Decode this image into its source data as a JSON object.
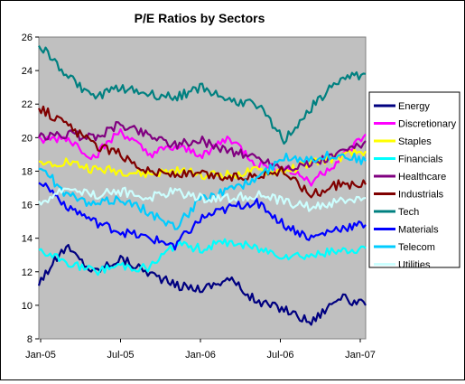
{
  "chart_data": {
    "type": "line",
    "title": "P/E Ratios by Sectors",
    "xlabel": "",
    "ylabel": "",
    "ylim": [
      8,
      26
    ],
    "y_ticks": [
      8,
      10,
      12,
      14,
      16,
      18,
      20,
      22,
      24,
      26
    ],
    "x_ticks": [
      "Jan-05",
      "Jul-05",
      "Jan-06",
      "Jul-06",
      "Jan-07"
    ],
    "grid": false,
    "plot_background": "#c0c0c0",
    "legend_position": "right",
    "x": [
      "Jan-05",
      "Mar-05",
      "May-05",
      "Jul-05",
      "Sep-05",
      "Nov-05",
      "Jan-06",
      "Mar-06",
      "May-06",
      "Jul-06",
      "Sep-06",
      "Nov-06",
      "Jan-07"
    ],
    "series": [
      {
        "name": "Energy",
        "color": "#000080",
        "values": [
          11.4,
          13.5,
          12.0,
          12.8,
          12.0,
          11.2,
          11.0,
          11.6,
          10.2,
          9.8,
          9.0,
          10.5,
          10.0
        ]
      },
      {
        "name": "Discretionary",
        "color": "#ff00ff",
        "values": [
          19.8,
          20.0,
          18.8,
          20.4,
          19.0,
          19.4,
          19.0,
          20.0,
          18.4,
          18.2,
          17.4,
          18.6,
          20.2
        ]
      },
      {
        "name": "Staples",
        "color": "#ffff00",
        "values": [
          18.4,
          18.6,
          18.1,
          18.0,
          17.8,
          18.0,
          17.8,
          17.8,
          18.0,
          18.0,
          18.5,
          18.8,
          19.2
        ]
      },
      {
        "name": "Financials",
        "color": "#00ffff",
        "values": [
          13.2,
          12.6,
          12.0,
          12.4,
          12.2,
          13.6,
          13.4,
          13.8,
          13.4,
          13.0,
          13.0,
          13.2,
          13.4
        ]
      },
      {
        "name": "Healthcare",
        "color": "#800080",
        "values": [
          20.0,
          20.2,
          20.0,
          20.8,
          20.2,
          19.6,
          19.8,
          19.2,
          18.8,
          18.2,
          18.4,
          19.0,
          19.8
        ]
      },
      {
        "name": "Industrials",
        "color": "#800000",
        "values": [
          21.8,
          20.8,
          19.6,
          19.0,
          18.0,
          17.8,
          17.8,
          17.6,
          17.8,
          18.0,
          16.6,
          17.2,
          17.2
        ]
      },
      {
        "name": "Tech",
        "color": "#008080",
        "values": [
          25.6,
          23.8,
          22.4,
          23.0,
          22.6,
          22.4,
          23.0,
          22.2,
          22.0,
          19.8,
          21.8,
          23.4,
          23.8
        ]
      },
      {
        "name": "Materials",
        "color": "#0000ff",
        "values": [
          17.5,
          16.0,
          15.0,
          14.4,
          14.0,
          13.6,
          15.2,
          15.8,
          16.2,
          14.8,
          14.0,
          14.6,
          14.8
        ]
      },
      {
        "name": "Telecom",
        "color": "#00ccff",
        "values": [
          18.4,
          16.6,
          16.0,
          16.4,
          15.6,
          14.6,
          16.4,
          16.8,
          17.6,
          18.8,
          18.8,
          19.0,
          18.6
        ]
      },
      {
        "name": "Utilities",
        "color": "#ccffff",
        "values": [
          16.0,
          17.0,
          16.6,
          16.8,
          16.4,
          16.8,
          16.4,
          16.4,
          16.6,
          16.2,
          15.8,
          16.2,
          16.4
        ]
      }
    ]
  }
}
